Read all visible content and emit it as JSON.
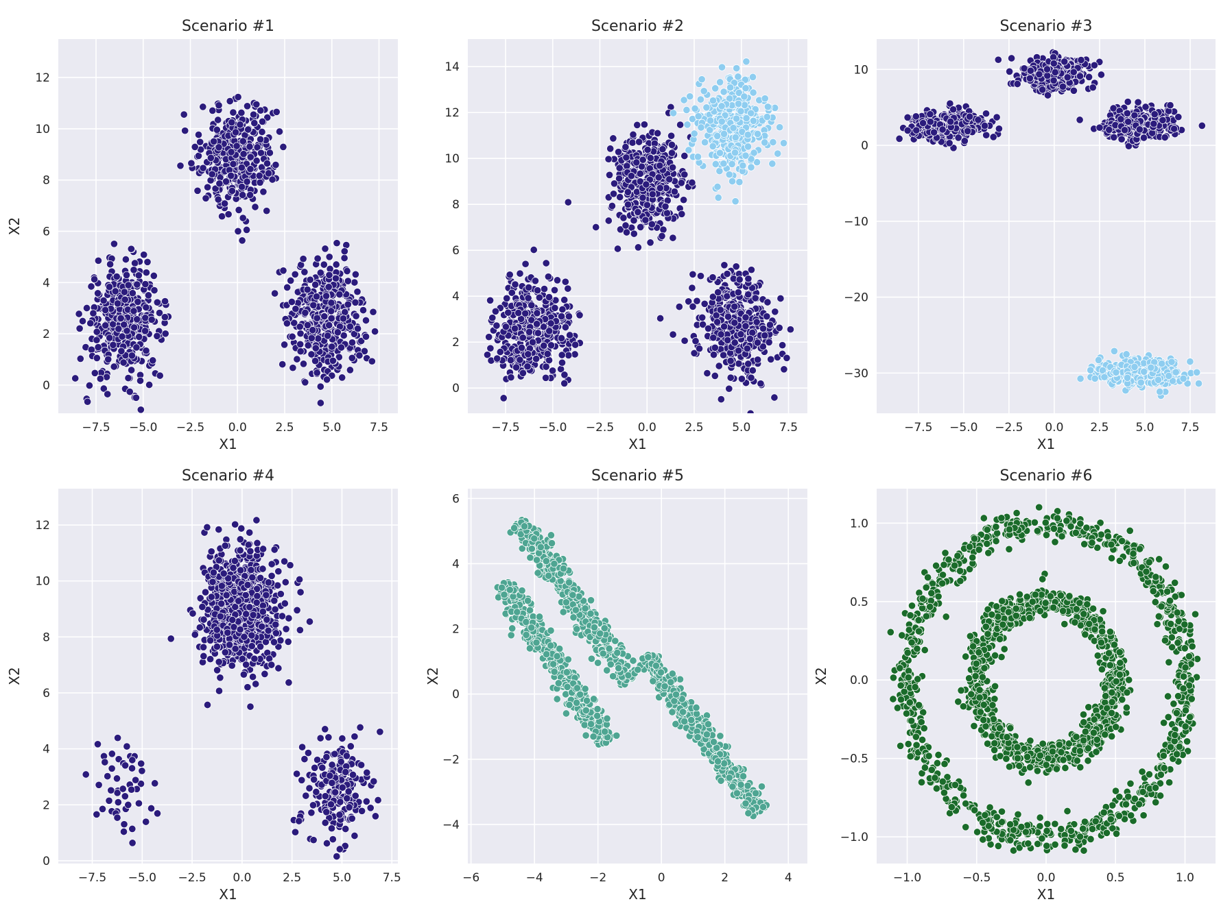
{
  "chart_data": [
    {
      "type": "scatter",
      "title": "Scenario #1",
      "xlabel": "X1",
      "ylabel": "X2",
      "xlim": [
        -9.5,
        8.5
      ],
      "ylim": [
        -1.1,
        13.5
      ],
      "xticks": [
        -7.5,
        -5.0,
        -2.5,
        0.0,
        2.5,
        5.0,
        7.5
      ],
      "xtick_labels": [
        "−7.5",
        "−5.0",
        "−2.5",
        "0.0",
        "2.5",
        "5.0",
        "7.5"
      ],
      "yticks": [
        0,
        2,
        4,
        6,
        8,
        10,
        12
      ],
      "ytick_labels": [
        "0",
        "2",
        "4",
        "6",
        "8",
        "10",
        "12"
      ],
      "grid": true,
      "series": [
        {
          "kind": "blob",
          "color": "#2b1b7c",
          "n": 400,
          "cx": -6.0,
          "cy": 2.5,
          "sx": 1.0,
          "sy": 1.1
        },
        {
          "kind": "blob",
          "color": "#2b1b7c",
          "n": 400,
          "cx": 0.0,
          "cy": 9.0,
          "sx": 0.95,
          "sy": 1.0
        },
        {
          "kind": "blob",
          "color": "#2b1b7c",
          "n": 400,
          "cx": 4.7,
          "cy": 2.6,
          "sx": 1.0,
          "sy": 1.1
        }
      ]
    },
    {
      "type": "scatter",
      "title": "Scenario #2",
      "xlabel": "X1",
      "ylabel": "",
      "xlim": [
        -9.5,
        8.5
      ],
      "ylim": [
        -1.1,
        15.2
      ],
      "xticks": [
        -7.5,
        -5.0,
        -2.5,
        0.0,
        2.5,
        5.0,
        7.5
      ],
      "xtick_labels": [
        "−7.5",
        "−5.0",
        "−2.5",
        "0.0",
        "2.5",
        "5.0",
        "7.5"
      ],
      "yticks": [
        0,
        2,
        4,
        6,
        8,
        10,
        12,
        14
      ],
      "ytick_labels": [
        "0",
        "2",
        "4",
        "6",
        "8",
        "10",
        "12",
        "14"
      ],
      "grid": true,
      "series": [
        {
          "kind": "blob",
          "color": "#2b1b7c",
          "n": 400,
          "cx": -6.0,
          "cy": 2.5,
          "sx": 1.0,
          "sy": 1.1
        },
        {
          "kind": "blob",
          "color": "#2b1b7c",
          "n": 400,
          "cx": 0.0,
          "cy": 9.0,
          "sx": 0.95,
          "sy": 1.0
        },
        {
          "kind": "blob",
          "color": "#2b1b7c",
          "n": 400,
          "cx": 4.7,
          "cy": 2.6,
          "sx": 1.0,
          "sy": 1.1
        },
        {
          "kind": "blob",
          "color": "#8ecdf0",
          "n": 400,
          "cx": 4.5,
          "cy": 11.5,
          "sx": 1.0,
          "sy": 1.1
        }
      ]
    },
    {
      "type": "scatter",
      "title": "Scenario #3",
      "xlabel": "X1",
      "ylabel": "",
      "xlim": [
        -9.8,
        8.9
      ],
      "ylim": [
        -35.3,
        14.0
      ],
      "xticks": [
        -7.5,
        -5.0,
        -2.5,
        0.0,
        2.5,
        5.0,
        7.5
      ],
      "xtick_labels": [
        "−7.5",
        "−5.0",
        "−2.5",
        "0.0",
        "2.5",
        "5.0",
        "7.5"
      ],
      "yticks": [
        -30,
        -20,
        -10,
        0,
        10
      ],
      "ytick_labels": [
        "−30",
        "−20",
        "−10",
        "0",
        "10"
      ],
      "grid": true,
      "series": [
        {
          "kind": "blob",
          "color": "#2b1b7c",
          "n": 400,
          "cx": -6.0,
          "cy": 2.5,
          "sx": 1.0,
          "sy": 1.0
        },
        {
          "kind": "blob",
          "color": "#2b1b7c",
          "n": 400,
          "cx": 0.0,
          "cy": 9.5,
          "sx": 0.95,
          "sy": 1.0
        },
        {
          "kind": "blob",
          "color": "#2b1b7c",
          "n": 400,
          "cx": 4.8,
          "cy": 2.8,
          "sx": 1.0,
          "sy": 1.0
        },
        {
          "kind": "blob",
          "color": "#8ecdf0",
          "n": 400,
          "cx": 4.7,
          "cy": -30.0,
          "sx": 1.2,
          "sy": 0.9
        }
      ]
    },
    {
      "type": "scatter",
      "title": "Scenario #4",
      "xlabel": "X1",
      "ylabel": "X2",
      "xlim": [
        -9.2,
        7.8
      ],
      "ylim": [
        -0.1,
        13.3
      ],
      "xticks": [
        -7.5,
        -5.0,
        -2.5,
        0.0,
        2.5,
        5.0,
        7.5
      ],
      "xtick_labels": [
        "−7.5",
        "−5.0",
        "−2.5",
        "0.0",
        "2.5",
        "5.0",
        "7.5"
      ],
      "yticks": [
        0,
        2,
        4,
        6,
        8,
        10,
        12
      ],
      "ytick_labels": [
        "0",
        "2",
        "4",
        "6",
        "8",
        "10",
        "12"
      ],
      "grid": true,
      "series": [
        {
          "kind": "blob",
          "color": "#2b1b7c",
          "n": 50,
          "cx": -6.0,
          "cy": 2.5,
          "sx": 0.8,
          "sy": 0.9
        },
        {
          "kind": "blob",
          "color": "#2b1b7c",
          "n": 800,
          "cx": 0.0,
          "cy": 9.0,
          "sx": 0.95,
          "sy": 1.1
        },
        {
          "kind": "blob",
          "color": "#2b1b7c",
          "n": 200,
          "cx": 4.7,
          "cy": 2.6,
          "sx": 0.9,
          "sy": 0.9
        }
      ]
    },
    {
      "type": "scatter",
      "title": "Scenario #5",
      "xlabel": "X1",
      "ylabel": "X2",
      "xlim": [
        -6.1,
        4.6
      ],
      "ylim": [
        -5.2,
        6.3
      ],
      "xticks": [
        -6,
        -4,
        -2,
        0,
        2,
        4
      ],
      "xtick_labels": [
        "−6",
        "−4",
        "−2",
        "0",
        "2",
        "4"
      ],
      "yticks": [
        -4,
        -2,
        0,
        2,
        4,
        6
      ],
      "ytick_labels": [
        "−4",
        "−2",
        "0",
        "2",
        "4",
        "6"
      ],
      "grid": true,
      "series": [
        {
          "kind": "band",
          "color": "#4ea592",
          "n": 400,
          "x0": -4.5,
          "y0": 5.3,
          "x1": -1.0,
          "y1": 0.4,
          "width": 0.2
        },
        {
          "kind": "band",
          "color": "#4ea592",
          "n": 400,
          "x0": -5.0,
          "y0": 3.4,
          "x1": -1.7,
          "y1": -1.5,
          "width": 0.2
        },
        {
          "kind": "band",
          "color": "#4ea592",
          "n": 400,
          "x0": -0.5,
          "y0": 1.2,
          "x1": 3.1,
          "y1": -3.6,
          "width": 0.18
        }
      ]
    },
    {
      "type": "scatter",
      "title": "Scenario #6",
      "xlabel": "X1",
      "ylabel": "X2",
      "xlim": [
        -1.22,
        1.22
      ],
      "ylim": [
        -1.17,
        1.22
      ],
      "xticks": [
        -1.0,
        -0.5,
        0.0,
        0.5,
        1.0
      ],
      "xtick_labels": [
        "−1.0",
        "−0.5",
        "0.0",
        "0.5",
        "1.0"
      ],
      "yticks": [
        -1.0,
        -0.5,
        0.0,
        0.5,
        1.0
      ],
      "ytick_labels": [
        "−1.0",
        "−0.5",
        "0.0",
        "0.5",
        "1.0"
      ],
      "grid": true,
      "series": [
        {
          "kind": "ring",
          "color": "#1a6b2a",
          "n": 900,
          "r": 1.0,
          "noise": 0.05
        },
        {
          "kind": "ring",
          "color": "#1a6b2a",
          "n": 900,
          "r": 0.5,
          "noise": 0.05
        }
      ]
    }
  ]
}
